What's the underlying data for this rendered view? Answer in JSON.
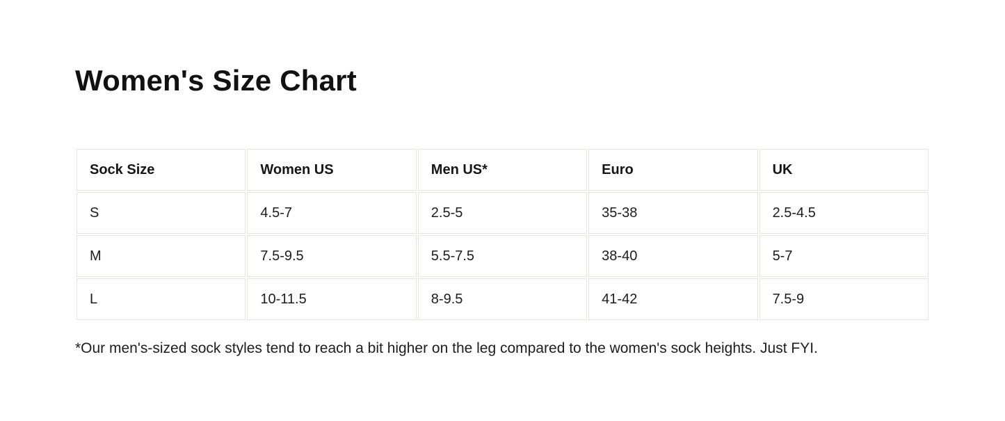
{
  "page": {
    "title": "Women's Size Chart",
    "footnote": "*Our men's-sized sock styles tend to reach a bit higher on the leg compared to the women's sock heights. Just FYI."
  },
  "size_chart": {
    "columns": [
      "Sock Size",
      "Women US",
      "Men US*",
      "Euro",
      "UK"
    ],
    "rows": [
      [
        "S",
        "4.5-7",
        "2.5-5",
        "35-38",
        "2.5-4.5"
      ],
      [
        "M",
        "7.5-9.5",
        "5.5-7.5",
        "38-40",
        "5-7"
      ],
      [
        "L",
        "10-11.5",
        "8-9.5",
        "41-42",
        "7.5-9"
      ]
    ]
  },
  "colors": {
    "text": "#1d1d1d",
    "title_text": "#111111",
    "cell_border": "#e7e4de",
    "background": "#ffffff"
  }
}
